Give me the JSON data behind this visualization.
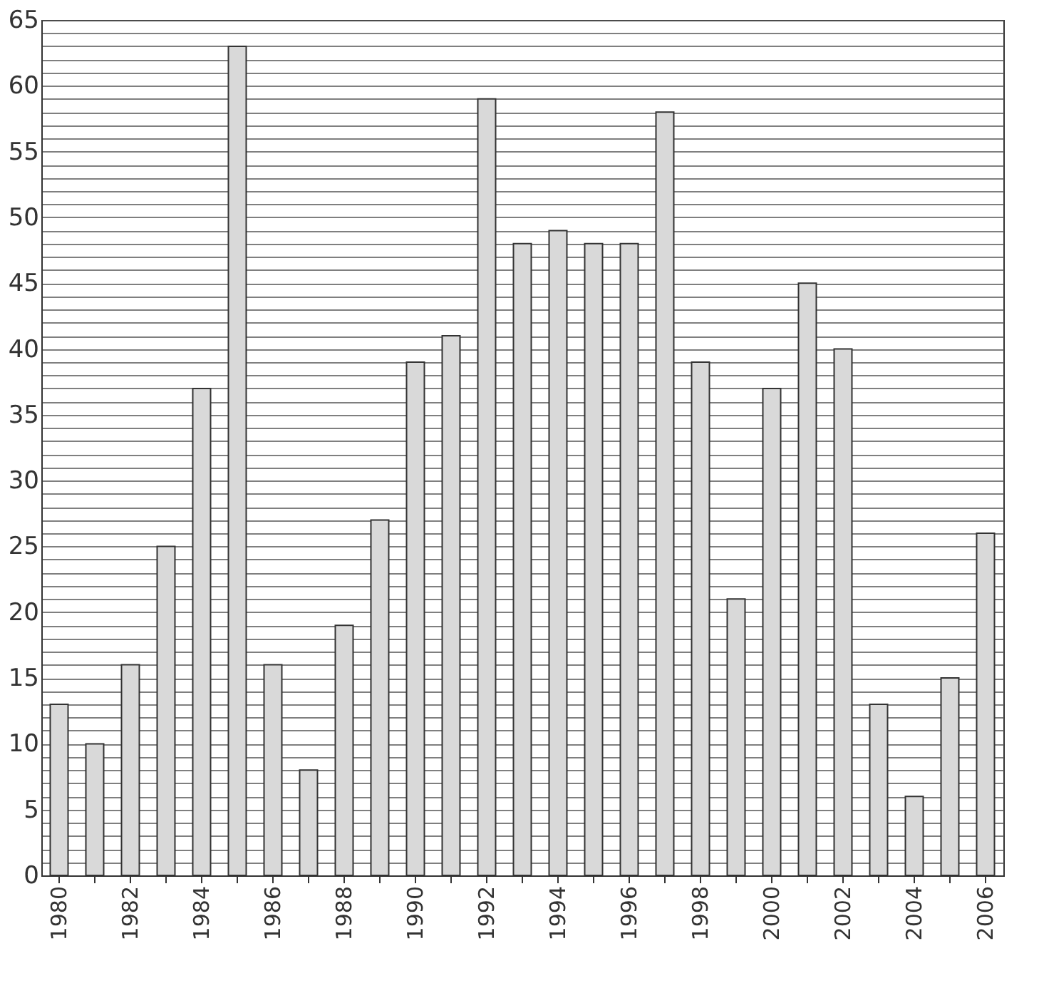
{
  "chart_data": {
    "type": "bar",
    "categories": [
      "1980",
      null,
      "1982",
      null,
      "1984",
      null,
      "1986",
      null,
      "1988",
      null,
      "1990",
      null,
      "1992",
      null,
      "1994",
      null,
      "1996",
      null,
      "1998",
      null,
      "2000",
      null,
      "2002",
      null,
      "2004",
      null,
      "2006"
    ],
    "values": [
      13,
      10,
      16,
      25,
      37,
      63,
      16,
      8,
      19,
      27,
      39,
      41,
      59,
      48,
      49,
      48,
      48,
      58,
      39,
      21,
      37,
      45,
      40,
      13,
      6,
      15,
      26
    ],
    "color": "#d9d9d9",
    "ylim": [
      0,
      65
    ],
    "yticks": [
      0,
      {
        "value": 1,
        "label": null
      },
      {
        "value": 2,
        "label": null
      },
      {
        "value": 3,
        "label": null
      },
      {
        "value": 4,
        "label": null
      },
      5,
      {
        "value": 6,
        "label": null
      },
      {
        "value": 7,
        "label": null
      },
      {
        "value": 8,
        "label": null
      },
      {
        "value": 9,
        "label": null
      },
      10,
      {
        "value": 11,
        "label": null
      },
      {
        "value": 12,
        "label": null
      },
      {
        "value": 13,
        "label": null
      },
      {
        "value": 14,
        "label": null
      },
      15,
      {
        "value": 16,
        "label": null
      },
      {
        "value": 17,
        "label": null
      },
      {
        "value": 18,
        "label": null
      },
      {
        "value": 19,
        "label": null
      },
      20,
      {
        "value": 21,
        "label": null
      },
      {
        "value": 22,
        "label": null
      },
      {
        "value": 23,
        "label": null
      },
      {
        "value": 24,
        "label": null
      },
      25,
      {
        "value": 26,
        "label": null
      },
      {
        "value": 27,
        "label": null
      },
      {
        "value": 28,
        "label": null
      },
      {
        "value": 29,
        "label": null
      },
      30,
      {
        "value": 31,
        "label": null
      },
      {
        "value": 32,
        "label": null
      },
      {
        "value": 33,
        "label": null
      },
      {
        "value": 34,
        "label": null
      },
      35,
      {
        "value": 36,
        "label": null
      },
      {
        "value": 37,
        "label": null
      },
      {
        "value": 38,
        "label": null
      },
      {
        "value": 39,
        "label": null
      },
      40,
      {
        "value": 41,
        "label": null
      },
      {
        "value": 42,
        "label": null
      },
      {
        "value": 43,
        "label": null
      },
      {
        "value": 44,
        "label": null
      },
      45,
      {
        "value": 46,
        "label": null
      },
      {
        "value": 47,
        "label": null
      },
      {
        "value": 48,
        "label": null
      },
      {
        "value": 49,
        "label": null
      },
      50,
      {
        "value": 51,
        "label": null
      },
      {
        "value": 52,
        "label": null
      },
      {
        "value": 53,
        "label": null
      },
      {
        "value": 54,
        "label": null
      },
      55,
      {
        "value": 56,
        "label": null
      },
      {
        "value": 57,
        "label": null
      },
      {
        "value": 58,
        "label": null
      },
      {
        "value": 59,
        "label": null
      },
      60,
      {
        "value": 61,
        "label": null
      },
      {
        "value": 62,
        "label": null
      },
      {
        "value": 63,
        "label": null
      },
      {
        "value": 64,
        "label": null
      },
      65
    ],
    "grid": "y"
  }
}
